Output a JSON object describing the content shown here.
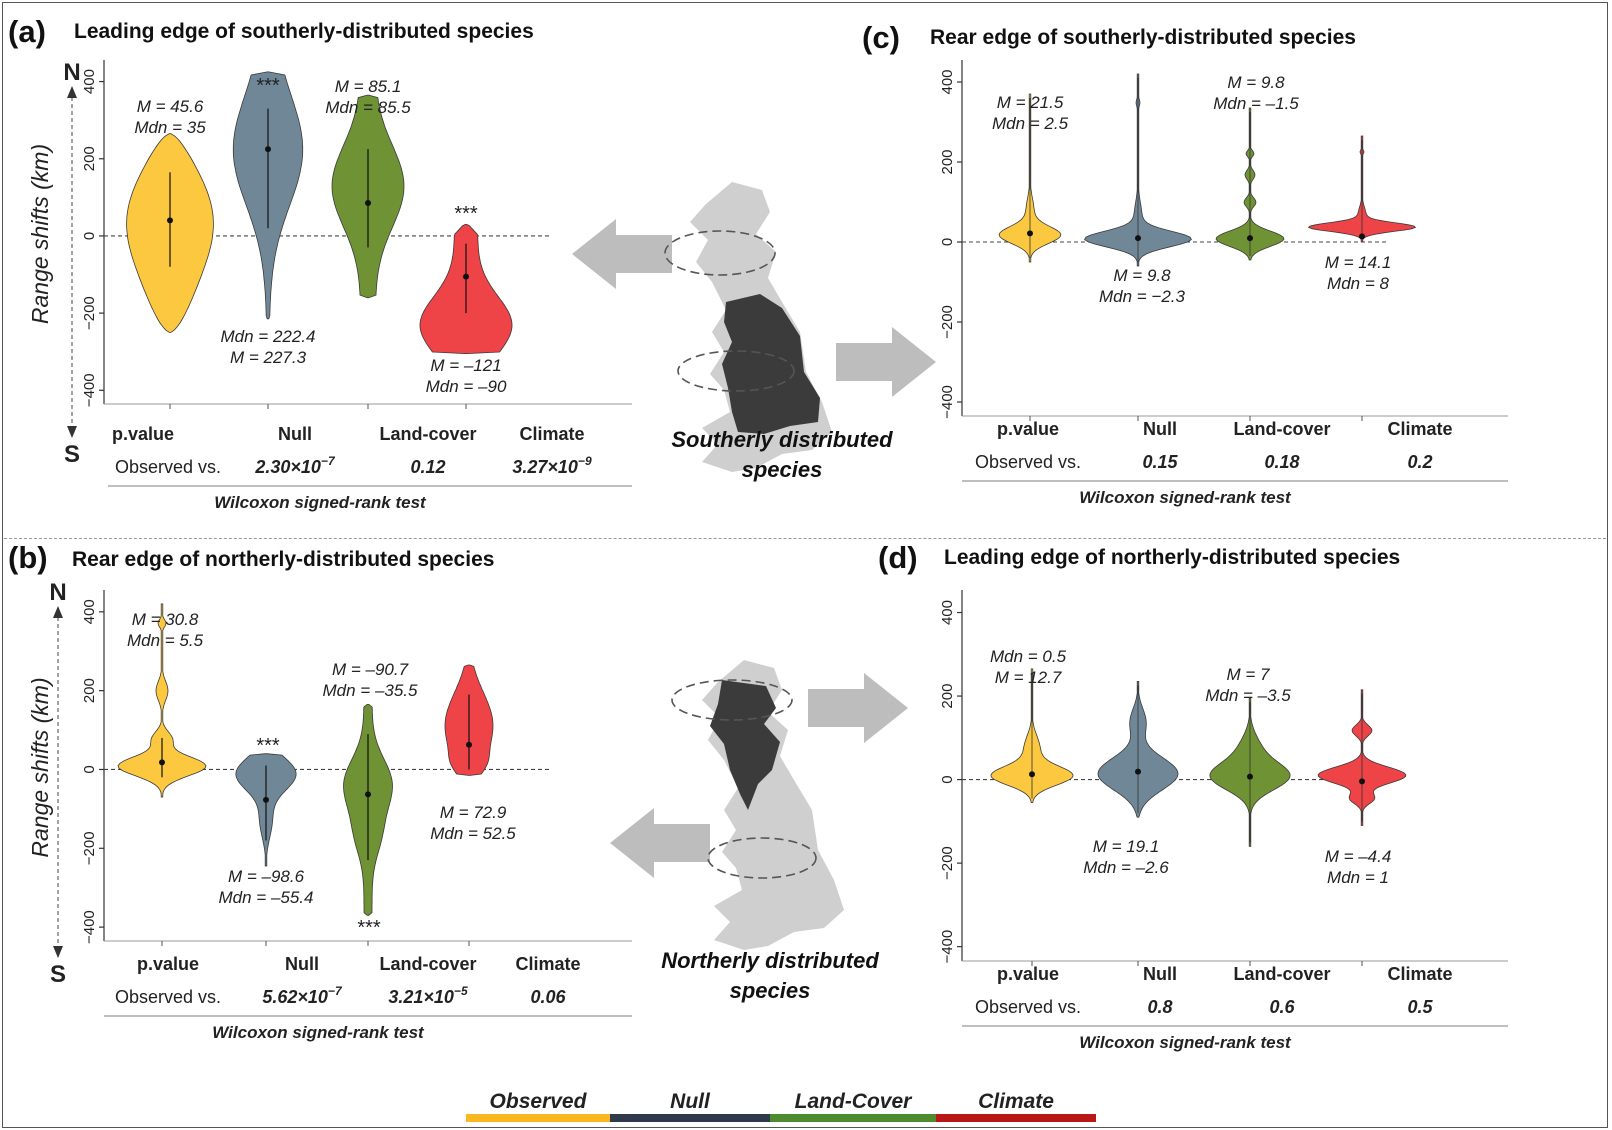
{
  "colors": {
    "observed": "#FBC840",
    "null": "#6F8797",
    "landcover": "#6E9234",
    "climate": "#EE4347",
    "legend_observed": "#F9B820",
    "legend_null": "#2F3B4C",
    "legend_landcover": "#4E8A2E",
    "legend_climate": "#B81818"
  },
  "arrow_north": "N",
  "arrow_south": "S",
  "legend": [
    "Observed",
    "Null",
    "Land-Cover",
    "Climate"
  ],
  "map_top_label": [
    "Southerly distributed",
    "species"
  ],
  "map_bottom_label": [
    "Northerly distributed",
    "species"
  ],
  "chart_data": [
    {
      "panel": "(a)",
      "title": "Leading edge of southerly-distributed species",
      "type": "violin",
      "ylabel": "Range shifts (km)",
      "ylim": [
        -420,
        430
      ],
      "yticks": [
        -400,
        -200,
        0,
        200,
        400
      ],
      "categories": [
        "Observed",
        "Null",
        "Land-Cover",
        "Climate"
      ],
      "series": [
        {
          "name": "Observed",
          "min": -250,
          "max": 265,
          "median": 35,
          "mean": 45.6,
          "q1": -80,
          "q3": 165,
          "shape": "observed",
          "annotation": [
            "M = 45.6",
            "Mdn = 35"
          ]
        },
        {
          "name": "Null",
          "min": -215,
          "max": 425,
          "median": 222.4,
          "mean": 227.3,
          "q1": 20,
          "q3": 330,
          "shape": "null",
          "annotation": [
            "Mdn = 222.4",
            "M = 227.3"
          ],
          "sig": "***"
        },
        {
          "name": "Land-Cover",
          "min": -160,
          "max": 365,
          "median": 85.5,
          "mean": 85.1,
          "q1": -30,
          "q3": 225,
          "shape": "landcover",
          "annotation": [
            "M = 85.1",
            "Mdn = 85.5"
          ]
        },
        {
          "name": "Climate",
          "min": -305,
          "max": 30,
          "median": -90,
          "mean": -121,
          "q1": -200,
          "q3": -20,
          "shape": "climate",
          "annotation": [
            "M = –121",
            "Mdn = –90"
          ],
          "sig": "***"
        }
      ],
      "table": {
        "header": "p.value",
        "row": "Observed vs.",
        "cols": [
          "Null",
          "Land-cover",
          "Climate"
        ],
        "values": [
          {
            "m": "2.30",
            "e": "−7"
          },
          {
            "m": "0.12",
            "e": ""
          },
          {
            "m": "3.27",
            "e": "−9"
          }
        ],
        "footer": "Wilcoxon signed-rank test"
      }
    },
    {
      "panel": "(b)",
      "title": "Rear edge of northerly-distributed species",
      "type": "violin",
      "ylabel": "Range shifts (km)",
      "ylim": [
        -420,
        430
      ],
      "yticks": [
        -400,
        -200,
        0,
        200,
        400
      ],
      "categories": [
        "Observed",
        "Null",
        "Land-Cover",
        "Climate"
      ],
      "series": [
        {
          "name": "Observed",
          "min": -70,
          "max": 420,
          "median": 5.5,
          "mean": 30.8,
          "q1": -20,
          "q3": 80,
          "shape": "spiky",
          "annotation": [
            "M = 30.8",
            "Mdn = 5.5"
          ]
        },
        {
          "name": "Null",
          "min": -245,
          "max": 40,
          "median": -55.4,
          "mean": -98.6,
          "q1": -180,
          "q3": 10,
          "shape": "down",
          "annotation": [
            "M = –98.6",
            "Mdn = –55.4"
          ],
          "sig": "***"
        },
        {
          "name": "Land-Cover",
          "min": -370,
          "max": 165,
          "median": -35.5,
          "mean": -90.7,
          "q1": -230,
          "q3": 90,
          "shape": "long",
          "annotation": [
            "M = –90.7",
            "Mdn = –35.5"
          ],
          "sig": "***"
        },
        {
          "name": "Climate",
          "min": -15,
          "max": 265,
          "median": 52.5,
          "mean": 72.9,
          "q1": 0,
          "q3": 190,
          "shape": "up",
          "annotation": [
            "M = 72.9",
            "Mdn = 52.5"
          ]
        }
      ],
      "table": {
        "header": "p.value",
        "row": "Observed vs.",
        "cols": [
          "Null",
          "Land-cover",
          "Climate"
        ],
        "values": [
          {
            "m": "5.62",
            "e": "−7"
          },
          {
            "m": "3.21",
            "e": "−5"
          },
          {
            "m": "0.06",
            "e": ""
          }
        ],
        "footer": "Wilcoxon signed-rank test"
      }
    },
    {
      "panel": "(c)",
      "title": "Rear edge of southerly-distributed species",
      "type": "violin",
      "ylim": [
        -420,
        430
      ],
      "yticks": [
        -400,
        -200,
        0,
        200,
        400
      ],
      "categories": [
        "Observed",
        "Null",
        "Land-Cover",
        "Climate"
      ],
      "series": [
        {
          "name": "Observed",
          "min": -50,
          "max": 370,
          "median": 2.5,
          "mean": 21.5,
          "shape": "flat",
          "annotation": [
            "M = 21.5",
            "Mdn = 2.5"
          ]
        },
        {
          "name": "Null",
          "min": -60,
          "max": 420,
          "median": -2.3,
          "mean": 9.8,
          "shape": "flatwide",
          "annotation": [
            "M = 9.8",
            "Mdn = −2.3"
          ]
        },
        {
          "name": "Land-Cover",
          "min": -45,
          "max": 335,
          "median": -1.5,
          "mean": 9.8,
          "shape": "flatbeads",
          "annotation": [
            "M = 9.8",
            "Mdn = –1.5"
          ]
        },
        {
          "name": "Climate",
          "min": 0,
          "max": 265,
          "median": 8,
          "mean": 14.1,
          "shape": "flatwide",
          "annotation": [
            "M = 14.1",
            "Mdn = 8"
          ]
        }
      ],
      "table": {
        "header": "p.value",
        "row": "Observed vs.",
        "cols": [
          "Null",
          "Land-cover",
          "Climate"
        ],
        "values": [
          {
            "m": "0.15",
            "e": ""
          },
          {
            "m": "0.18",
            "e": ""
          },
          {
            "m": "0.2",
            "e": ""
          }
        ],
        "footer": "Wilcoxon signed-rank test"
      }
    },
    {
      "panel": "(d)",
      "title": "Leading edge of northerly-distributed species",
      "type": "violin",
      "ylim": [
        -420,
        430
      ],
      "yticks": [
        -400,
        -200,
        0,
        200,
        400
      ],
      "categories": [
        "Observed",
        "Null",
        "Land-Cover",
        "Climate"
      ],
      "series": [
        {
          "name": "Observed",
          "min": -55,
          "max": 265,
          "median": 0.5,
          "mean": 12.7,
          "shape": "obsd",
          "annotation": [
            "Mdn = 0.5",
            "M = 12.7"
          ]
        },
        {
          "name": "Null",
          "min": -90,
          "max": 235,
          "median": -2.6,
          "mean": 19.1,
          "shape": "nulld",
          "annotation": [
            "M = 19.1",
            "Mdn = –2.6"
          ]
        },
        {
          "name": "Land-Cover",
          "min": -160,
          "max": 195,
          "median": -3.5,
          "mean": 7,
          "shape": "lcd",
          "annotation": [
            "M = 7",
            "Mdn = –3.5"
          ]
        },
        {
          "name": "Climate",
          "min": -110,
          "max": 215,
          "median": 1,
          "mean": -4.4,
          "shape": "cld",
          "annotation": [
            "M = –4.4",
            "Mdn = 1"
          ]
        }
      ],
      "table": {
        "header": "p.value",
        "row": "Observed vs.",
        "cols": [
          "Null",
          "Land-cover",
          "Climate"
        ],
        "values": [
          {
            "m": "0.8",
            "e": ""
          },
          {
            "m": "0.6",
            "e": ""
          },
          {
            "m": "0.5",
            "e": ""
          }
        ],
        "footer": "Wilcoxon signed-rank test"
      }
    }
  ]
}
